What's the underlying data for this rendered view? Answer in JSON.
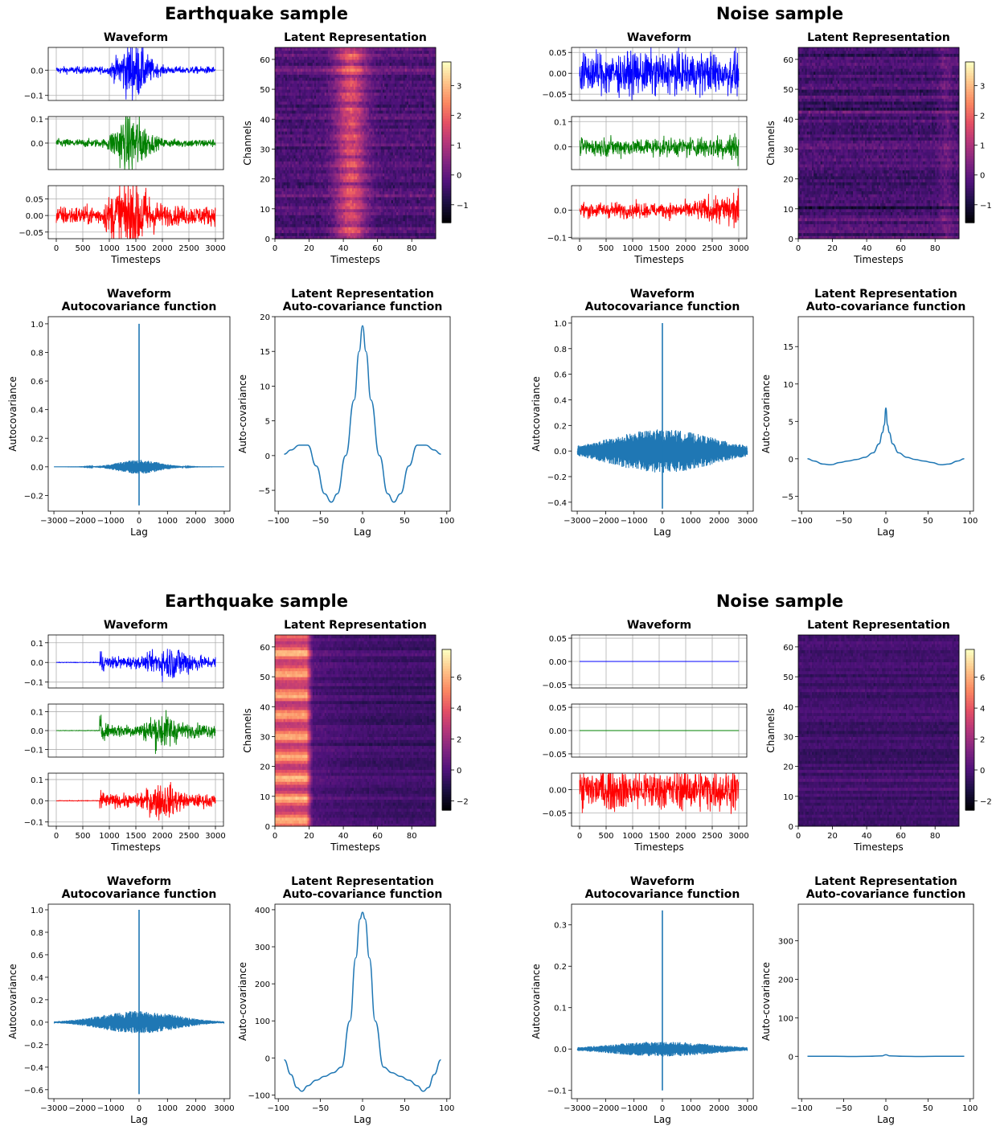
{
  "chart_data": [
    {
      "name": "eq1",
      "section_title": "Earthquake sample",
      "waveform": {
        "title": "Waveform",
        "type": "line",
        "xlabel": "Timesteps",
        "xlim": [
          0,
          3000
        ],
        "xticks": [
          0,
          500,
          1000,
          1500,
          2000,
          2500,
          3000
        ],
        "channels": [
          {
            "color": "#0000ff",
            "ylim": [
              -0.12,
              0.09
            ],
            "yticks": [
              -0.1,
              0.0
            ],
            "ytick_labels": [
              "−0.1",
              "0.0"
            ],
            "amp_noise": 0.01,
            "amp_event": 0.075,
            "onset": 1000,
            "peak": 1450,
            "decay": 500
          },
          {
            "color": "#008000",
            "ylim": [
              -0.11,
              0.11
            ],
            "yticks": [
              0.0,
              0.1
            ],
            "ytick_labels": [
              "0.0",
              "0.1"
            ],
            "amp_noise": 0.012,
            "amp_event": 0.09,
            "onset": 950,
            "peak": 1400,
            "decay": 500
          },
          {
            "color": "#ff0000",
            "ylim": [
              -0.07,
              0.09
            ],
            "yticks": [
              -0.05,
              0.0,
              0.05
            ],
            "ytick_labels": [
              "−0.05",
              "0.00",
              "0.05"
            ],
            "amp_noise": 0.02,
            "amp_event": 0.07,
            "onset": 900,
            "peak": 1400,
            "decay": 600
          }
        ]
      },
      "latent": {
        "title": "Latent Representation",
        "type": "heatmap",
        "xlabel": "Timesteps",
        "ylabel": "Channels",
        "xlim": [
          0,
          94
        ],
        "ylim": [
          0,
          64
        ],
        "xticks": [
          0,
          20,
          40,
          60,
          80
        ],
        "yticks": [
          0,
          10,
          20,
          30,
          40,
          50,
          60
        ],
        "colormap": "magma",
        "vmin": -1.6,
        "vmax": 3.8,
        "colorbar_ticks": [
          -1,
          0,
          1,
          2,
          3
        ],
        "pattern": "center",
        "base": -0.3,
        "peak": 2.2,
        "center": 44,
        "width": 9
      },
      "wave_acf": {
        "title": [
          "Waveform",
          "Autocovariance function"
        ],
        "type": "line",
        "xlabel": "Lag",
        "ylabel": "Autocovariance",
        "xlim": [
          -3200,
          3200
        ],
        "ylim": [
          -0.31,
          1.05
        ],
        "xticks": [
          -3000,
          -2000,
          -1000,
          0,
          1000,
          2000,
          3000
        ],
        "yticks": [
          -0.2,
          0.0,
          0.2,
          0.4,
          0.6,
          0.8,
          1.0
        ],
        "peak": 1.0,
        "min": -0.27,
        "spread": 0.05,
        "spread_width": 1200,
        "color": "#1f77b4"
      },
      "latent_acf": {
        "title": [
          "Latent Representation",
          "Auto-covariance function"
        ],
        "type": "line",
        "xlabel": "Lag",
        "ylabel": "Auto-covariance",
        "xlim": [
          -104,
          104
        ],
        "ylim": [
          -8,
          20
        ],
        "xticks": [
          -100,
          -50,
          0,
          50,
          100
        ],
        "yticks": [
          -5,
          0,
          5,
          10,
          15,
          20
        ],
        "color": "#1f77b4",
        "x": [
          -93,
          -85,
          -75,
          -65,
          -55,
          -45,
          -37,
          -30,
          -20,
          -10,
          -4,
          0,
          4,
          10,
          20,
          30,
          37,
          45,
          55,
          65,
          75,
          85,
          93
        ],
        "y": [
          0.2,
          0.8,
          1.5,
          1.5,
          -1.5,
          -5.5,
          -6.7,
          -5.5,
          0,
          8,
          15,
          18.7,
          15,
          8,
          0,
          -5.5,
          -6.7,
          -5.5,
          -1.5,
          1.5,
          1.5,
          0.8,
          0.2
        ]
      }
    },
    {
      "name": "noise1",
      "section_title": "Noise sample",
      "waveform": {
        "title": "Waveform",
        "type": "line",
        "xlabel": "Timesteps",
        "xlim": [
          0,
          3000
        ],
        "xticks": [
          0,
          500,
          1000,
          1500,
          2000,
          2500,
          3000
        ],
        "channels": [
          {
            "color": "#0000ff",
            "ylim": [
              -0.065,
              0.062
            ],
            "yticks": [
              -0.05,
              0.0,
              0.05
            ],
            "ytick_labels": [
              "−0.05",
              "0.00",
              "0.05"
            ],
            "amp_noise": 0.035,
            "amp_event": 0.0,
            "onset": 0,
            "peak": 0,
            "decay": 1
          },
          {
            "color": "#008000",
            "ylim": [
              -0.09,
              0.12
            ],
            "yticks": [
              0.0,
              0.1
            ],
            "ytick_labels": [
              "0.0",
              "0.1"
            ],
            "amp_noise": 0.025,
            "amp_event": 0.0,
            "onset": 0,
            "peak": 0,
            "decay": 1,
            "grow": 0.6
          },
          {
            "color": "#ff0000",
            "ylim": [
              -0.105,
              0.09
            ],
            "yticks": [
              -0.1,
              0.0
            ],
            "ytick_labels": [
              "−0.1",
              "0.0"
            ],
            "amp_noise": 0.02,
            "amp_event": 0.0,
            "onset": 0,
            "peak": 0,
            "decay": 1,
            "grow": 1.5
          }
        ]
      },
      "latent": {
        "title": "Latent Representation",
        "type": "heatmap",
        "xlabel": "Timesteps",
        "ylabel": "Channels",
        "xlim": [
          0,
          94
        ],
        "ylim": [
          0,
          64
        ],
        "xticks": [
          0,
          20,
          40,
          60,
          80
        ],
        "yticks": [
          0,
          10,
          20,
          30,
          40,
          50,
          60
        ],
        "colormap": "magma",
        "vmin": -1.6,
        "vmax": 3.8,
        "colorbar_ticks": [
          -1,
          0,
          1,
          2,
          3
        ],
        "pattern": "flat",
        "base": -0.3,
        "peak": 0.4,
        "center": 86,
        "width": 4
      },
      "wave_acf": {
        "title": [
          "Waveform",
          "Autocovariance function"
        ],
        "type": "line",
        "xlabel": "Lag",
        "ylabel": "Autocovariance",
        "xlim": [
          -3200,
          3200
        ],
        "ylim": [
          -0.47,
          1.05
        ],
        "xticks": [
          -3000,
          -2000,
          -1000,
          0,
          1000,
          2000,
          3000
        ],
        "yticks": [
          -0.4,
          -0.2,
          0.0,
          0.2,
          0.4,
          0.6,
          0.8,
          1.0
        ],
        "peak": 1.0,
        "min": -0.45,
        "spread": 0.17,
        "spread_width": 3000,
        "color": "#1f77b4"
      },
      "latent_acf": {
        "title": [
          "Latent Representation",
          "Auto-covariance function"
        ],
        "type": "line",
        "xlabel": "Lag",
        "ylabel": "Auto-covariance",
        "xlim": [
          -104,
          104
        ],
        "ylim": [
          -7,
          19
        ],
        "xticks": [
          -100,
          -50,
          0,
          50,
          100
        ],
        "yticks": [
          -5,
          0,
          5,
          10,
          15
        ],
        "color": "#1f77b4",
        "x": [
          -93,
          -85,
          -75,
          -65,
          -55,
          -45,
          -35,
          -25,
          -15,
          -8,
          -4,
          -2,
          0,
          2,
          4,
          8,
          15,
          25,
          35,
          45,
          55,
          65,
          75,
          85,
          93
        ],
        "y": [
          0,
          -0.3,
          -0.7,
          -0.8,
          -0.5,
          -0.3,
          -0.1,
          0.2,
          0.8,
          2,
          3.5,
          4.5,
          6.8,
          4.5,
          3.5,
          2,
          0.8,
          0.2,
          -0.1,
          -0.3,
          -0.5,
          -0.8,
          -0.7,
          -0.3,
          0
        ]
      }
    },
    {
      "name": "eq2",
      "section_title": "Earthquake sample",
      "waveform": {
        "title": "Waveform",
        "type": "line",
        "xlabel": "Timesteps",
        "xlim": [
          0,
          3000
        ],
        "xticks": [
          0,
          500,
          1000,
          1500,
          2000,
          2500,
          3000
        ],
        "channels": [
          {
            "color": "#0000ff",
            "ylim": [
              -0.13,
              0.14
            ],
            "yticks": [
              -0.1,
              0.0,
              0.1
            ],
            "ytick_labels": [
              "−0.1",
              "0.0",
              "0.1"
            ],
            "amp_noise": 0.001,
            "amp_event": 0.06,
            "onset": 820,
            "peak": 2200,
            "decay": 1200,
            "double": 1
          },
          {
            "color": "#008000",
            "ylim": [
              -0.14,
              0.14
            ],
            "yticks": [
              -0.1,
              0.0,
              0.1
            ],
            "ytick_labels": [
              "−0.1",
              "0.0",
              "0.1"
            ],
            "amp_noise": 0.001,
            "amp_event": 0.07,
            "onset": 820,
            "peak": 2000,
            "decay": 900,
            "double": 1
          },
          {
            "color": "#ff0000",
            "ylim": [
              -0.12,
              0.13
            ],
            "yticks": [
              -0.1,
              0.0,
              0.1
            ],
            "ytick_labels": [
              "−0.1",
              "0.0",
              "0.1"
            ],
            "amp_noise": 0.001,
            "amp_event": 0.06,
            "onset": 820,
            "peak": 2000,
            "decay": 1000,
            "double": 1
          }
        ]
      },
      "latent": {
        "title": "Latent Representation",
        "type": "heatmap",
        "xlabel": "Timesteps",
        "ylabel": "Channels",
        "xlim": [
          0,
          94
        ],
        "ylim": [
          0,
          64
        ],
        "xticks": [
          0,
          20,
          40,
          60,
          80
        ],
        "yticks": [
          0,
          10,
          20,
          30,
          40,
          50,
          60
        ],
        "colormap": "magma",
        "vmin": -2.6,
        "vmax": 7.8,
        "colorbar_ticks": [
          -2,
          0,
          2,
          4,
          6
        ],
        "pattern": "left",
        "base": -0.5,
        "peak": 6.5,
        "center": 10,
        "width": 12
      },
      "wave_acf": {
        "title": [
          "Waveform",
          "Autocovariance function"
        ],
        "type": "line",
        "xlabel": "Lag",
        "ylabel": "Autocovariance",
        "xlim": [
          -3200,
          3200
        ],
        "ylim": [
          -0.68,
          1.05
        ],
        "xticks": [
          -3000,
          -2000,
          -1000,
          0,
          1000,
          2000,
          3000
        ],
        "yticks": [
          -0.6,
          -0.4,
          -0.2,
          0.0,
          0.2,
          0.4,
          0.6,
          0.8,
          1.0
        ],
        "peak": 1.0,
        "min": -0.64,
        "spread": 0.1,
        "spread_width": 2200,
        "color": "#1f77b4"
      },
      "latent_acf": {
        "title": [
          "Latent Representation",
          "Auto-covariance function"
        ],
        "type": "line",
        "xlabel": "Lag",
        "ylabel": "Auto-covariance",
        "xlim": [
          -104,
          104
        ],
        "ylim": [
          -110,
          415
        ],
        "xticks": [
          -100,
          -50,
          0,
          50,
          100
        ],
        "yticks": [
          -100,
          0,
          100,
          200,
          300,
          400
        ],
        "color": "#1f77b4",
        "x": [
          -93,
          -85,
          -78,
          -72,
          -65,
          -55,
          -45,
          -35,
          -25,
          -15,
          -8,
          -3,
          0,
          3,
          8,
          15,
          25,
          35,
          45,
          55,
          65,
          72,
          78,
          85,
          93
        ],
        "y": [
          -5,
          -45,
          -80,
          -90,
          -75,
          -60,
          -50,
          -40,
          -25,
          100,
          270,
          375,
          393,
          375,
          270,
          100,
          -25,
          -40,
          -50,
          -60,
          -75,
          -90,
          -80,
          -45,
          -5
        ]
      }
    },
    {
      "name": "noise2",
      "section_title": "Noise sample",
      "waveform": {
        "title": "Waveform",
        "type": "line",
        "xlabel": "Timesteps",
        "xlim": [
          0,
          3000
        ],
        "xticks": [
          0,
          500,
          1000,
          1500,
          2000,
          2500,
          3000
        ],
        "channels": [
          {
            "color": "#0000ff",
            "ylim": [
              -0.057,
              0.057
            ],
            "yticks": [
              -0.05,
              0.0,
              0.05
            ],
            "ytick_labels": [
              "−0.05",
              "0.00",
              "0.05"
            ],
            "amp_noise": 0.0,
            "amp_event": 0.0,
            "onset": 0,
            "peak": 0,
            "decay": 1
          },
          {
            "color": "#008000",
            "ylim": [
              -0.057,
              0.057
            ],
            "yticks": [
              -0.05,
              0.0,
              0.05
            ],
            "ytick_labels": [
              "−0.05",
              "0.00",
              "0.05"
            ],
            "amp_noise": 0.0,
            "amp_event": 0.0,
            "onset": 0,
            "peak": 0,
            "decay": 1
          },
          {
            "color": "#ff0000",
            "ylim": [
              -0.078,
              0.035
            ],
            "yticks": [
              -0.05,
              0.0
            ],
            "ytick_labels": [
              "−0.05",
              "0.00"
            ],
            "amp_noise": 0.03,
            "amp_event": 0.0,
            "onset": 0,
            "peak": 0,
            "decay": 1
          }
        ]
      },
      "latent": {
        "title": "Latent Representation",
        "type": "heatmap",
        "xlabel": "Timesteps",
        "ylabel": "Channels",
        "xlim": [
          0,
          94
        ],
        "ylim": [
          0,
          64
        ],
        "xticks": [
          0,
          20,
          40,
          60,
          80
        ],
        "yticks": [
          0,
          10,
          20,
          30,
          40,
          50,
          60
        ],
        "colormap": "magma",
        "vmin": -2.6,
        "vmax": 7.8,
        "colorbar_ticks": [
          -2,
          0,
          2,
          4,
          6
        ],
        "pattern": "flat",
        "base": -0.4,
        "peak": 0.0,
        "center": 0,
        "width": 1
      },
      "wave_acf": {
        "title": [
          "Waveform",
          "Autocovariance function"
        ],
        "type": "line",
        "xlabel": "Lag",
        "ylabel": "Autocovariance",
        "xlim": [
          -3200,
          3200
        ],
        "ylim": [
          -0.12,
          0.35
        ],
        "xticks": [
          -3000,
          -2000,
          -1000,
          0,
          1000,
          2000,
          3000
        ],
        "yticks": [
          -0.1,
          0.0,
          0.1,
          0.2,
          0.3
        ],
        "peak": 0.335,
        "min": -0.1,
        "spread": 0.018,
        "spread_width": 3000,
        "color": "#1f77b4"
      },
      "latent_acf": {
        "title": [
          "Latent Representation",
          "Auto-covariance function"
        ],
        "type": "line",
        "xlabel": "Lag",
        "ylabel": "Auto-covariance",
        "xlim": [
          -104,
          104
        ],
        "ylim": [
          -110,
          395
        ],
        "xticks": [
          -100,
          -50,
          0,
          50,
          100
        ],
        "yticks": [
          0,
          100,
          200,
          300
        ],
        "color": "#1f77b4",
        "x": [
          -93,
          -60,
          -40,
          -20,
          -5,
          0,
          5,
          20,
          40,
          60,
          93
        ],
        "y": [
          0,
          0,
          -0.5,
          0,
          1,
          4,
          1,
          0,
          -0.5,
          0,
          0
        ]
      }
    }
  ]
}
